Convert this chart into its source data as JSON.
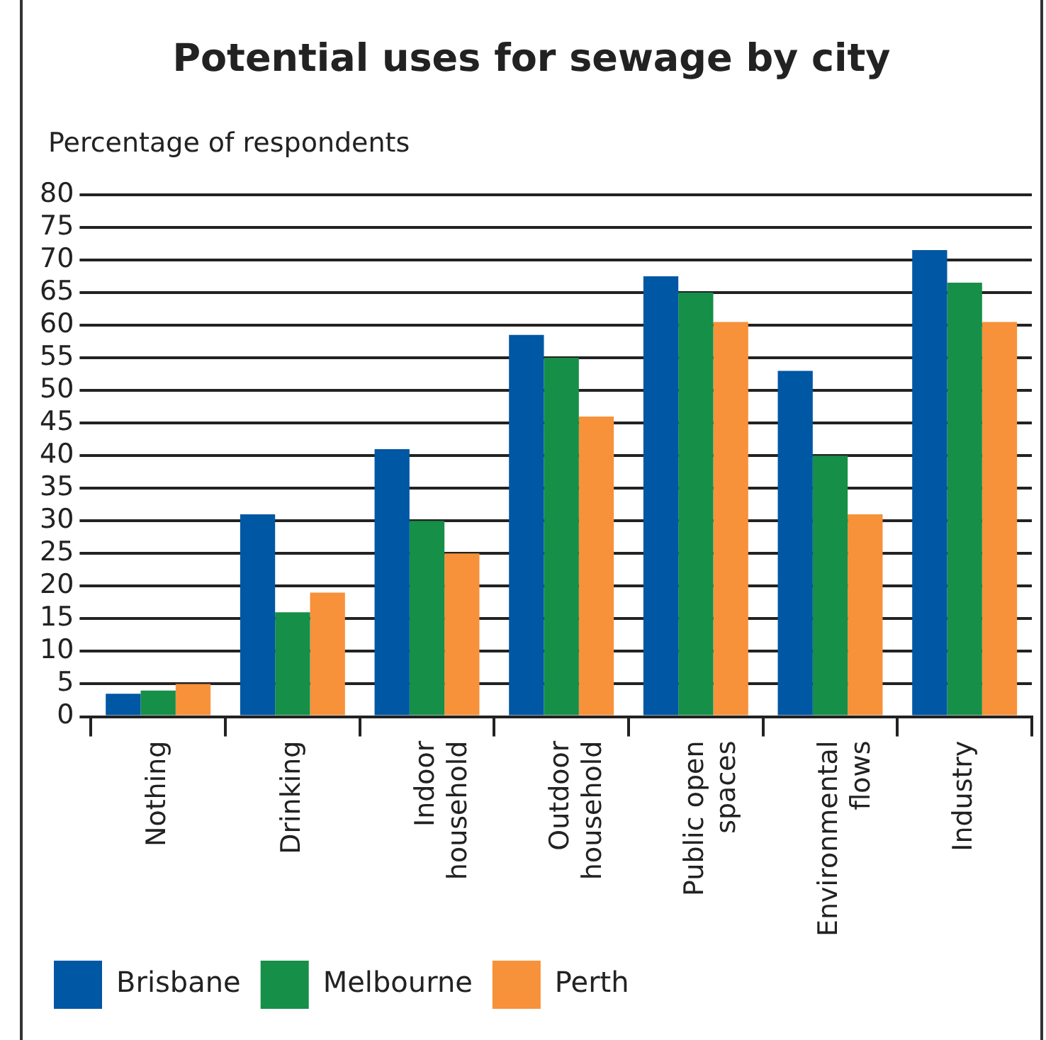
{
  "chart_data": {
    "type": "bar",
    "title": "Potential uses for sewage by city",
    "ylabel": "Percentage of respondents",
    "categories": [
      "Nothing",
      "Drinking",
      "Indoor household",
      "Outdoor household",
      "Public open spaces",
      "Environmental flows",
      "Industry"
    ],
    "series": [
      {
        "name": "Brisbane",
        "color": "#0057a4",
        "values": [
          3.5,
          31,
          41,
          58.5,
          67.5,
          53,
          71.5
        ]
      },
      {
        "name": "Melbourne",
        "color": "#168f48",
        "values": [
          4,
          16,
          30,
          55,
          65,
          40,
          66.5
        ]
      },
      {
        "name": "Perth",
        "color": "#f7913a",
        "values": [
          5,
          19,
          25,
          46,
          60.5,
          31,
          60.5
        ]
      }
    ],
    "ylim": [
      0,
      80
    ],
    "yticks": [
      0,
      5,
      10,
      15,
      20,
      25,
      30,
      35,
      40,
      45,
      50,
      55,
      60,
      65,
      70,
      75,
      80
    ],
    "grid": "y",
    "legend": "bottom"
  }
}
